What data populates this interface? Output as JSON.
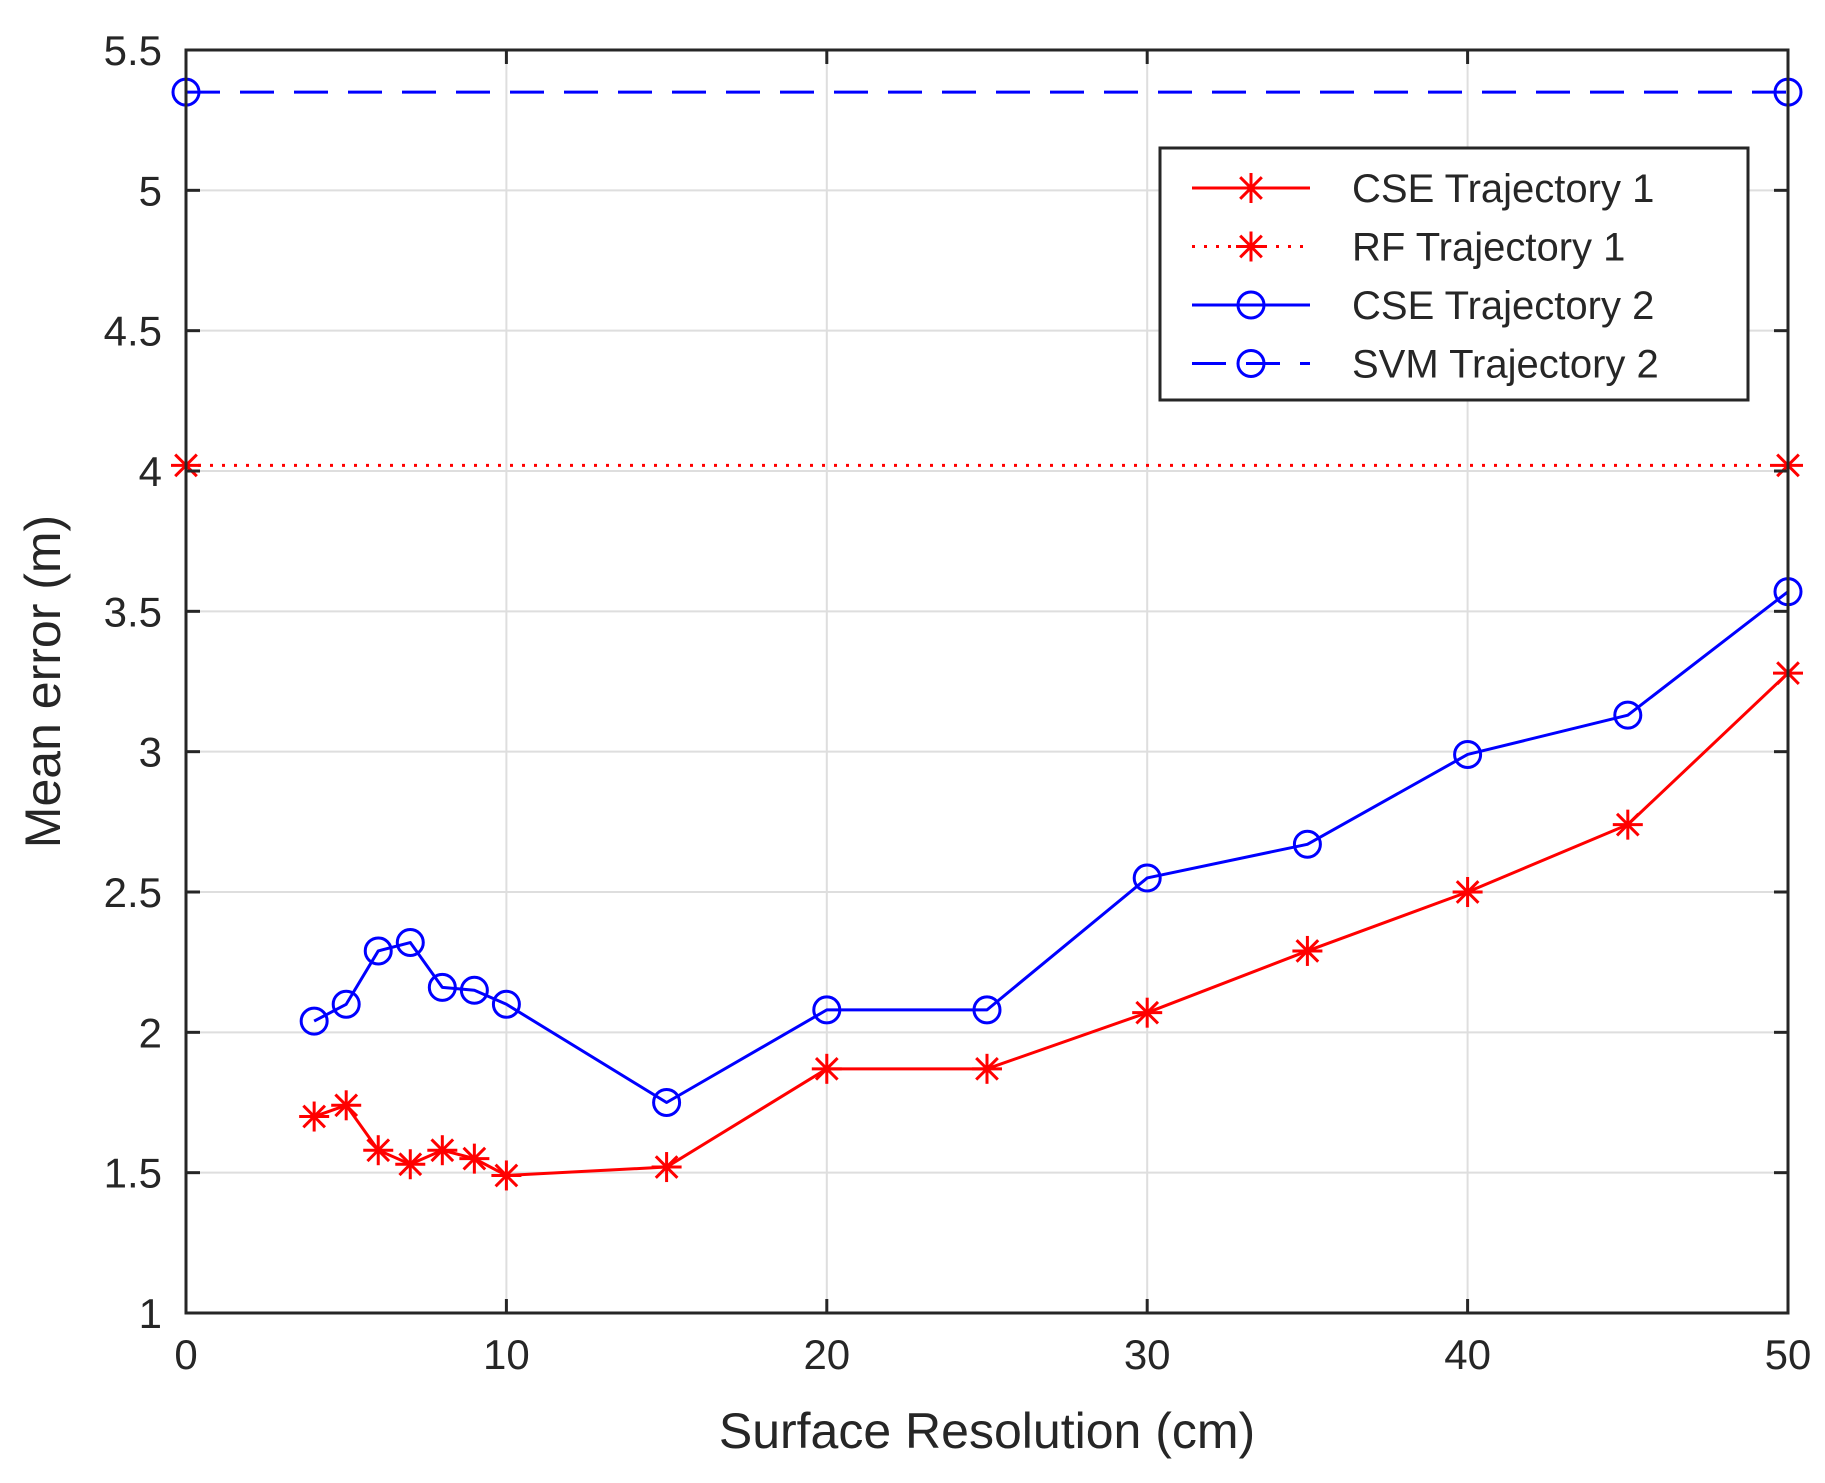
{
  "chart_data": {
    "type": "line",
    "title": "",
    "xlabel": "Surface Resolution (cm)",
    "ylabel": "Mean error (m)",
    "xlim": [
      0,
      50
    ],
    "ylim": [
      1,
      5.5
    ],
    "xticks": [
      0,
      10,
      20,
      30,
      40,
      50
    ],
    "yticks": [
      1,
      1.5,
      2,
      2.5,
      3,
      3.5,
      4,
      4.5,
      5,
      5.5
    ],
    "xtick_labels": [
      "0",
      "10",
      "20",
      "30",
      "40",
      "50"
    ],
    "ytick_labels": [
      "1",
      "1.5",
      "2",
      "2.5",
      "3",
      "3.5",
      "4",
      "4.5",
      "5",
      "5.5"
    ],
    "grid": true,
    "legend_position": "top-right",
    "series": [
      {
        "name": "CSE Trajectory 1",
        "color": "#ff0000",
        "line_style": "solid",
        "marker": "asterisk",
        "x": [
          4,
          5,
          6,
          7,
          8,
          9,
          10,
          15,
          20,
          25,
          30,
          35,
          40,
          45,
          50
        ],
        "y": [
          1.7,
          1.74,
          1.58,
          1.53,
          1.58,
          1.55,
          1.49,
          1.52,
          1.87,
          1.87,
          2.07,
          2.29,
          2.5,
          2.74,
          3.28
        ]
      },
      {
        "name": "RF Trajectory 1",
        "color": "#ff0000",
        "line_style": "dotted",
        "marker": "asterisk",
        "x": [
          0,
          50
        ],
        "y": [
          4.02,
          4.02
        ]
      },
      {
        "name": "CSE Trajectory 2",
        "color": "#0000ff",
        "line_style": "solid",
        "marker": "circle",
        "x": [
          4,
          5,
          6,
          7,
          8,
          9,
          10,
          15,
          20,
          25,
          30,
          35,
          40,
          45,
          50
        ],
        "y": [
          2.04,
          2.1,
          2.29,
          2.32,
          2.16,
          2.15,
          2.1,
          1.75,
          2.08,
          2.08,
          2.55,
          2.67,
          2.99,
          3.13,
          3.57
        ]
      },
      {
        "name": "SVM Trajectory 2",
        "color": "#0000ff",
        "line_style": "dashed",
        "marker": "circle",
        "x": [
          0,
          50
        ],
        "y": [
          5.35,
          5.35
        ]
      }
    ]
  }
}
